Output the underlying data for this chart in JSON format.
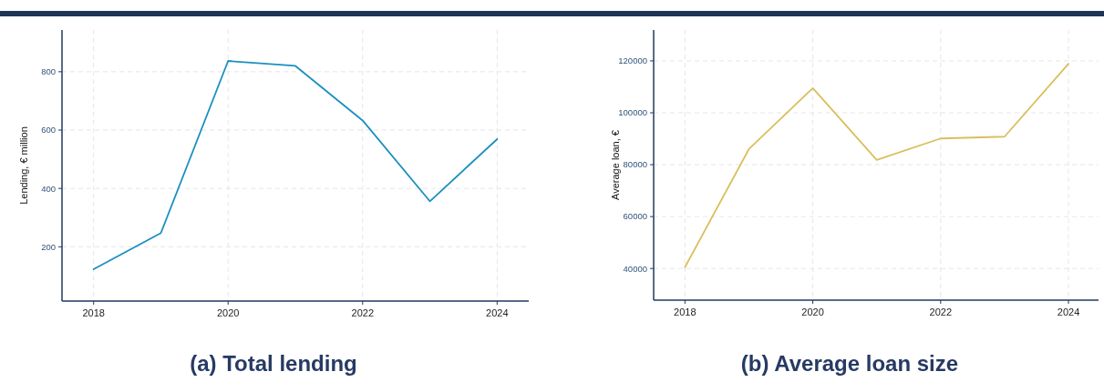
{
  "chart_data": [
    {
      "type": "line",
      "title": "(a) Total lending",
      "ylabel": "Lending, € million",
      "x": [
        2018,
        2019,
        2020,
        2021,
        2022,
        2023,
        2024
      ],
      "series": [
        {
          "color": "#1b8fc0",
          "values": [
            123,
            247,
            837,
            820,
            633,
            356,
            569
          ]
        }
      ],
      "xlim": [
        2017.53,
        2024.47
      ],
      "xticks": [
        2018,
        2020,
        2022,
        2024
      ],
      "ylim": [
        14,
        943
      ],
      "yticks": [
        200,
        400,
        600,
        800
      ],
      "grid": true,
      "marker": "none",
      "line_style": "solid"
    },
    {
      "type": "line",
      "title": "(b) Average loan size",
      "ylabel": "Average loan, €",
      "x": [
        2018,
        2019,
        2020,
        2021,
        2022,
        2023,
        2024
      ],
      "series": [
        {
          "color": "#d9bf5c",
          "values": [
            40500,
            86000,
            109500,
            81800,
            90100,
            90800,
            118900
          ]
        }
      ],
      "xlim": [
        2017.51,
        2024.47
      ],
      "ylim": [
        27800,
        131900
      ],
      "xticks": [
        2018,
        2020,
        2022,
        2024
      ],
      "yticks": [
        40000,
        60000,
        80000,
        100000,
        120000
      ],
      "grid": true,
      "marker": "none",
      "line_style": "solid"
    }
  ]
}
